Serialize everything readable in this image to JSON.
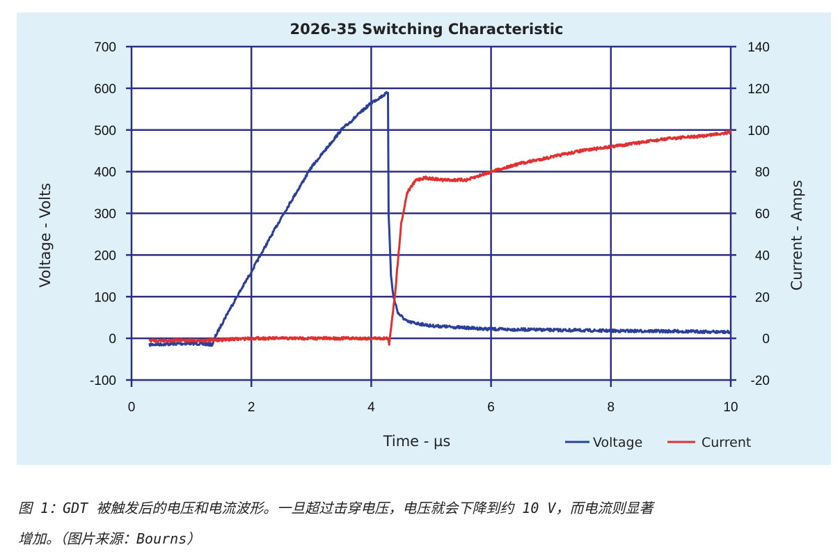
{
  "chart_data": {
    "type": "line",
    "title": "2026-35 Switching Characteristic",
    "xlabel": "Time - µs",
    "ylabel": "Voltage - Volts",
    "y2label": "Current - Amps",
    "xlim": [
      0,
      10
    ],
    "ylim": [
      -100,
      700
    ],
    "y2lim": [
      -20,
      140
    ],
    "xticks": [
      0,
      2,
      4,
      6,
      8,
      10
    ],
    "yticks": [
      -100,
      0,
      100,
      200,
      300,
      400,
      500,
      600,
      700
    ],
    "y2ticks": [
      -20,
      0,
      20,
      40,
      60,
      80,
      100,
      120,
      140
    ],
    "xgrid": [
      0,
      2,
      4,
      6,
      8,
      10
    ],
    "grid": true,
    "legend_position": "bottom-right",
    "series": [
      {
        "name": "Voltage",
        "axis": "left",
        "color": "#2a3f9a",
        "x": [
          0.3,
          1.0,
          1.35,
          1.4,
          1.6,
          2.0,
          2.5,
          3.0,
          3.5,
          4.0,
          4.28,
          4.29,
          4.3,
          4.33,
          4.37,
          4.45,
          4.6,
          5.0,
          6.0,
          7.0,
          8.0,
          9.0,
          10.0
        ],
        "y": [
          -15,
          -12,
          -15,
          5,
          60,
          160,
          290,
          410,
          500,
          565,
          590,
          300,
          270,
          150,
          100,
          60,
          40,
          30,
          22,
          20,
          18,
          17,
          15
        ]
      },
      {
        "name": "Current",
        "axis": "right",
        "color": "#e03030",
        "x": [
          0.3,
          1.3,
          2.0,
          3.0,
          4.0,
          4.28,
          4.3,
          4.35,
          4.4,
          4.5,
          4.6,
          4.75,
          4.9,
          5.2,
          5.6,
          6.0,
          6.5,
          7.0,
          7.5,
          8.0,
          8.5,
          9.0,
          9.5,
          10.0
        ],
        "y": [
          -1,
          -1,
          0,
          0,
          0,
          0,
          -3,
          10,
          22,
          55,
          70,
          76,
          77,
          76,
          76,
          80,
          84,
          87,
          90,
          92,
          94,
          96,
          97,
          99
        ]
      }
    ]
  },
  "caption": {
    "line1": "图 1：GDT 被触发后的电压和电流波形。一旦超过击穿电压，电压就会下降到约 10 V，而电流则显著",
    "line2": "增加。（图片来源：Bourns）"
  }
}
